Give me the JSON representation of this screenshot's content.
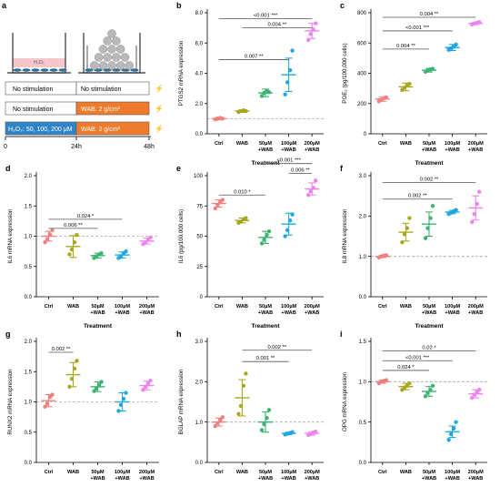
{
  "figure": {
    "panel_a": {
      "letter": "a",
      "well_left_label": "H₂O₂",
      "rows": [
        {
          "left": "No stimulation",
          "right": "No stimulation"
        },
        {
          "left": "No stimulation",
          "right": "WAB: 2 g/cm²"
        },
        {
          "left": "H₂O₂: 50, 100, 200 µM",
          "right": "WAB: 2 g/cm²"
        }
      ],
      "timeline": [
        "0",
        "24h",
        "48h"
      ],
      "colors": {
        "blue": "#2d84c9",
        "orange": "#ee7b2c",
        "pink": "#f6c6cc",
        "cells": "#2f6f9a"
      }
    }
  },
  "chart_data": [
    {
      "type": "scatter",
      "letter": "b",
      "ylabel": "PTGS2 mRNA expression",
      "xlabel": "Treatment",
      "ylim": [
        0,
        8
      ],
      "yticks": [
        "0.0",
        "2.0",
        "4.0",
        "6.0",
        "8.0"
      ],
      "baseline": 1,
      "categories": [
        "Ctrl",
        "WAB",
        "50µM\n+WAB",
        "100µM\n+WAB",
        "200µM\n+WAB"
      ],
      "colors": [
        "#f08080",
        "#a8a820",
        "#3cb371",
        "#1ea7e0",
        "#ee82ee"
      ],
      "mean": [
        1.0,
        1.5,
        2.7,
        3.9,
        6.8
      ],
      "sd": [
        0.08,
        0.08,
        0.25,
        1.1,
        0.5
      ],
      "points": [
        [
          0.95,
          1.0,
          1.05,
          1.0
        ],
        [
          1.45,
          1.5,
          1.55,
          1.5
        ],
        [
          2.5,
          2.7,
          2.85,
          2.75
        ],
        [
          2.6,
          3.4,
          4.2,
          5.5
        ],
        [
          6.2,
          6.6,
          6.9,
          7.3
        ]
      ],
      "brackets": [
        {
          "from": 0,
          "to": 4,
          "y": 7.6,
          "label": "<0.001 ***"
        },
        {
          "from": 1,
          "to": 4,
          "y": 7.0,
          "label": "0.004 **"
        },
        {
          "from": 0,
          "to": 3,
          "y": 4.9,
          "label": "0.007 **"
        }
      ]
    },
    {
      "type": "scatter",
      "letter": "c",
      "ylabel": "PGE₂ (pg/100,000 cells)",
      "xlabel": "Treatment",
      "ylim": [
        0,
        800
      ],
      "yticks": [
        "0",
        "200",
        "400",
        "600",
        "800"
      ],
      "categories": [
        "Ctrl",
        "WAB",
        "50µM\n+WAB",
        "100µM\n+WAB",
        "200µM\n+WAB"
      ],
      "colors": [
        "#f08080",
        "#a8a820",
        "#3cb371",
        "#1ea7e0",
        "#ee82ee"
      ],
      "mean": [
        230,
        310,
        420,
        570,
        730
      ],
      "sd": [
        15,
        25,
        12,
        20,
        8
      ],
      "points": [
        [
          215,
          225,
          235,
          240
        ],
        [
          290,
          305,
          320,
          330
        ],
        [
          410,
          418,
          425,
          430
        ],
        [
          555,
          565,
          575,
          590
        ],
        [
          722,
          728,
          733,
          738
        ]
      ],
      "brackets": [
        {
          "from": 0,
          "to": 4,
          "y": 770,
          "label": "0.004 **"
        },
        {
          "from": 0,
          "to": 3,
          "y": 680,
          "label": "<0.001 ***"
        },
        {
          "from": 0,
          "to": 2,
          "y": 560,
          "label": "0.004 **"
        }
      ]
    },
    {
      "type": "scatter",
      "letter": "d",
      "ylabel": "IL6 mRNA expression",
      "xlabel": "Treatment",
      "ylim": [
        0,
        2.0
      ],
      "yticks": [
        "0.0",
        "0.5",
        "1.0",
        "1.5",
        "2.0"
      ],
      "baseline": 1,
      "categories": [
        "Ctrl",
        "WAB",
        "50µM\n+WAB",
        "100µM\n+WAB",
        "200µM\n+WAB"
      ],
      "colors": [
        "#f08080",
        "#a8a820",
        "#3cb371",
        "#1ea7e0",
        "#ee82ee"
      ],
      "mean": [
        1.0,
        0.83,
        0.68,
        0.69,
        0.92
      ],
      "sd": [
        0.08,
        0.18,
        0.04,
        0.05,
        0.05
      ],
      "points": [
        [
          0.9,
          0.95,
          1.03,
          1.1
        ],
        [
          0.7,
          0.78,
          0.9,
          1.02
        ],
        [
          0.64,
          0.67,
          0.7,
          0.72
        ],
        [
          0.64,
          0.67,
          0.72,
          0.75
        ],
        [
          0.87,
          0.9,
          0.94,
          0.98
        ]
      ],
      "brackets": [
        {
          "from": 0,
          "to": 3,
          "y": 1.28,
          "label": "0.024 *"
        },
        {
          "from": 0,
          "to": 2,
          "y": 1.13,
          "label": "0.006 **"
        }
      ]
    },
    {
      "type": "scatter",
      "letter": "e",
      "ylabel": "IL6 (pg/100,000 cells)",
      "xlabel": "Treatment",
      "ylim": [
        0,
        100
      ],
      "yticks": [
        "0",
        "25",
        "50",
        "75",
        "100"
      ],
      "categories": [
        "Ctrl",
        "WAB",
        "50µM\n+WAB",
        "100µM\n+WAB",
        "200µM\n+WAB"
      ],
      "colors": [
        "#f08080",
        "#a8a820",
        "#3cb371",
        "#1ea7e0",
        "#ee82ee"
      ],
      "mean": [
        77,
        63,
        49,
        60,
        89
      ],
      "sd": [
        3,
        2,
        5,
        9,
        5
      ],
      "points": [
        [
          73,
          76,
          78,
          80
        ],
        [
          61,
          62,
          64,
          65
        ],
        [
          44,
          47,
          51,
          54
        ],
        [
          50,
          55,
          63,
          68
        ],
        [
          84,
          87,
          90,
          96
        ]
      ],
      "brackets": [
        {
          "from": 2,
          "to": 4,
          "y": 110,
          "label": "<0.001 ***"
        },
        {
          "from": 3,
          "to": 4,
          "y": 102,
          "label": "0.006 **"
        },
        {
          "from": 0,
          "to": 2,
          "y": 84,
          "label": "0.010 *"
        }
      ]
    },
    {
      "type": "scatter",
      "letter": "f",
      "ylabel": "IL8 mRNA expression",
      "xlabel": "Treatment",
      "ylim": [
        0,
        3.0
      ],
      "yticks": [
        "0.0",
        "1.0",
        "2.0",
        "3.0"
      ],
      "baseline": 1,
      "categories": [
        "Ctrl",
        "WAB",
        "50µM\n+WAB",
        "100µM\n+WAB",
        "200µM\n+WAB"
      ],
      "colors": [
        "#f08080",
        "#a8a820",
        "#3cb371",
        "#1ea7e0",
        "#ee82ee"
      ],
      "mean": [
        1.0,
        1.6,
        1.8,
        2.1,
        2.2
      ],
      "sd": [
        0.03,
        0.22,
        0.3,
        0.04,
        0.3
      ],
      "points": [
        [
          0.97,
          1.0,
          1.02,
          1.03
        ],
        [
          1.35,
          1.55,
          1.7,
          1.95
        ],
        [
          1.45,
          1.7,
          1.95,
          2.25
        ],
        [
          2.05,
          2.08,
          2.12,
          2.15
        ],
        [
          1.85,
          2.05,
          2.3,
          2.6
        ]
      ],
      "brackets": [
        {
          "from": 0,
          "to": 4,
          "y": 2.83,
          "label": "0.002 **"
        },
        {
          "from": 0,
          "to": 3,
          "y": 2.42,
          "label": "0.002 **"
        }
      ]
    },
    {
      "type": "scatter",
      "letter": "g",
      "ylabel": "RUNX2 mRNA expression",
      "xlabel": "Treatment",
      "ylim": [
        0,
        2.0
      ],
      "yticks": [
        "0.0",
        "0.5",
        "1.0",
        "1.5",
        "2.0"
      ],
      "baseline": 1,
      "categories": [
        "Ctrl",
        "WAB",
        "50µM\n+WAB",
        "100µM\n+WAB",
        "200µM\n+WAB"
      ],
      "colors": [
        "#f08080",
        "#a8a820",
        "#3cb371",
        "#1ea7e0",
        "#ee82ee"
      ],
      "mean": [
        1.02,
        1.45,
        1.25,
        1.0,
        1.27
      ],
      "sd": [
        0.1,
        0.2,
        0.08,
        0.15,
        0.07
      ],
      "points": [
        [
          0.92,
          0.97,
          1.08,
          1.12
        ],
        [
          1.25,
          1.38,
          1.55,
          1.68
        ],
        [
          1.18,
          1.22,
          1.28,
          1.33
        ],
        [
          0.85,
          0.95,
          1.05,
          1.15
        ],
        [
          1.2,
          1.25,
          1.3,
          1.35
        ]
      ],
      "brackets": [
        {
          "from": 0,
          "to": 1,
          "y": 1.82,
          "label": "0.002 **"
        }
      ]
    },
    {
      "type": "scatter",
      "letter": "h",
      "ylabel": "BGLAP mRNA expression",
      "xlabel": "Treatment",
      "ylim": [
        0,
        3.0
      ],
      "yticks": [
        "0.0",
        "1.0",
        "2.0",
        "3.0"
      ],
      "baseline": 1,
      "categories": [
        "Ctrl",
        "WAB",
        "50µM\n+WAB",
        "100µM\n+WAB",
        "200µM\n+WAB"
      ],
      "colors": [
        "#f08080",
        "#a8a820",
        "#3cb371",
        "#1ea7e0",
        "#ee82ee"
      ],
      "mean": [
        1.0,
        1.6,
        1.0,
        0.72,
        0.72
      ],
      "sd": [
        0.1,
        0.45,
        0.25,
        0.03,
        0.04
      ],
      "points": [
        [
          0.9,
          0.97,
          1.05,
          1.12
        ],
        [
          1.2,
          1.4,
          1.9,
          2.2
        ],
        [
          0.8,
          0.95,
          1.1,
          1.3
        ],
        [
          0.69,
          0.71,
          0.73,
          0.75
        ],
        [
          0.68,
          0.7,
          0.74,
          0.76
        ]
      ],
      "brackets": [
        {
          "from": 1,
          "to": 4,
          "y": 2.78,
          "label": "0.002 **"
        },
        {
          "from": 1,
          "to": 3,
          "y": 2.5,
          "label": "0.001 **"
        }
      ]
    },
    {
      "type": "scatter",
      "letter": "i",
      "ylabel": "OPG mRNA expression",
      "xlabel": "Treatment",
      "ylim": [
        0,
        1.5
      ],
      "yticks": [
        "0.0",
        "0.5",
        "1.0",
        "1.5"
      ],
      "baseline": 1,
      "categories": [
        "Ctrl",
        "WAB",
        "50µM\n+WAB",
        "100µM\n+WAB",
        "200µM\n+WAB"
      ],
      "colors": [
        "#f08080",
        "#a8a820",
        "#3cb371",
        "#1ea7e0",
        "#ee82ee"
      ],
      "mean": [
        1.0,
        0.94,
        0.88,
        0.38,
        0.85
      ],
      "sd": [
        0.02,
        0.04,
        0.06,
        0.07,
        0.05
      ],
      "points": [
        [
          0.98,
          1.0,
          1.01,
          1.02
        ],
        [
          0.9,
          0.93,
          0.95,
          0.98
        ],
        [
          0.82,
          0.86,
          0.9,
          0.95
        ],
        [
          0.28,
          0.35,
          0.42,
          0.5
        ],
        [
          0.8,
          0.84,
          0.87,
          0.9
        ]
      ],
      "brackets": [
        {
          "from": 0,
          "to": 4,
          "y": 1.38,
          "label": "0.02 *"
        },
        {
          "from": 0,
          "to": 3,
          "y": 1.26,
          "label": "<0.001 ***"
        },
        {
          "from": 0,
          "to": 2,
          "y": 1.14,
          "label": "0.024 *"
        }
      ]
    }
  ]
}
